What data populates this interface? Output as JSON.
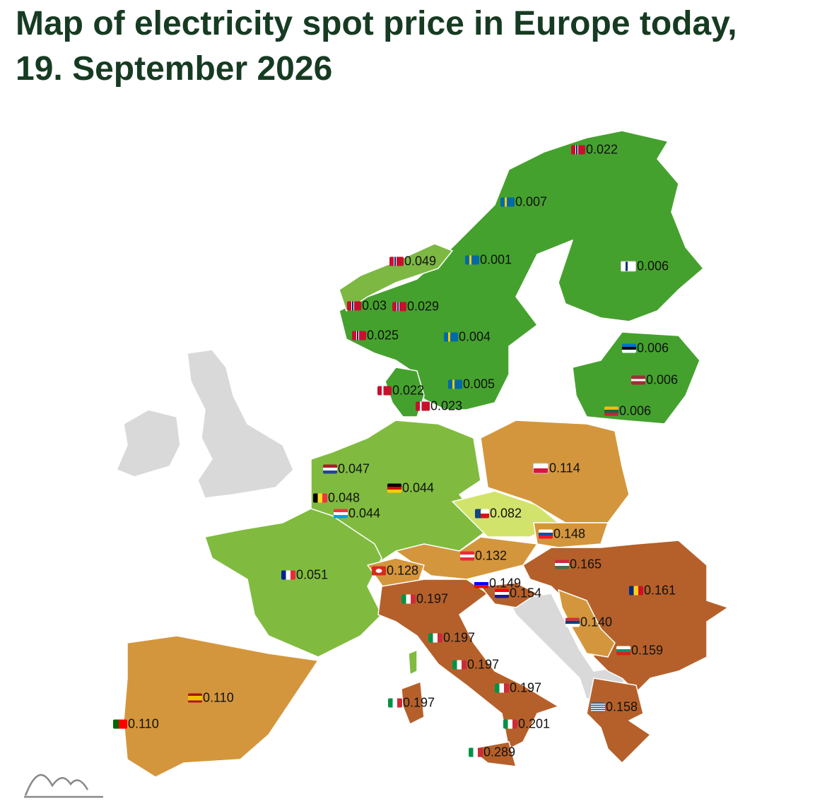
{
  "title": "Map of electricity spot price in Europe today, 19. September 2026",
  "price_labels": [
    "0.022",
    "0.007",
    "0.049",
    "0.001",
    "0.006",
    "0.03",
    "0.029",
    "0.025",
    "0.004",
    "0.006",
    "0.006",
    "0.022",
    "0.005",
    "0.023",
    "0.006",
    "0.114",
    "0.047",
    "0.044",
    "0.048",
    "0.044",
    "0.082",
    "0.148",
    "0.132",
    "0.165",
    "0.128",
    "0.051",
    "0.149",
    "0.154",
    "0.161",
    "0.197",
    "0.140",
    "0.197",
    "0.159",
    "0.197",
    "0.197",
    "0.110",
    "0.197",
    "0.158",
    "0.110",
    "0.201",
    "0.289"
  ]
}
